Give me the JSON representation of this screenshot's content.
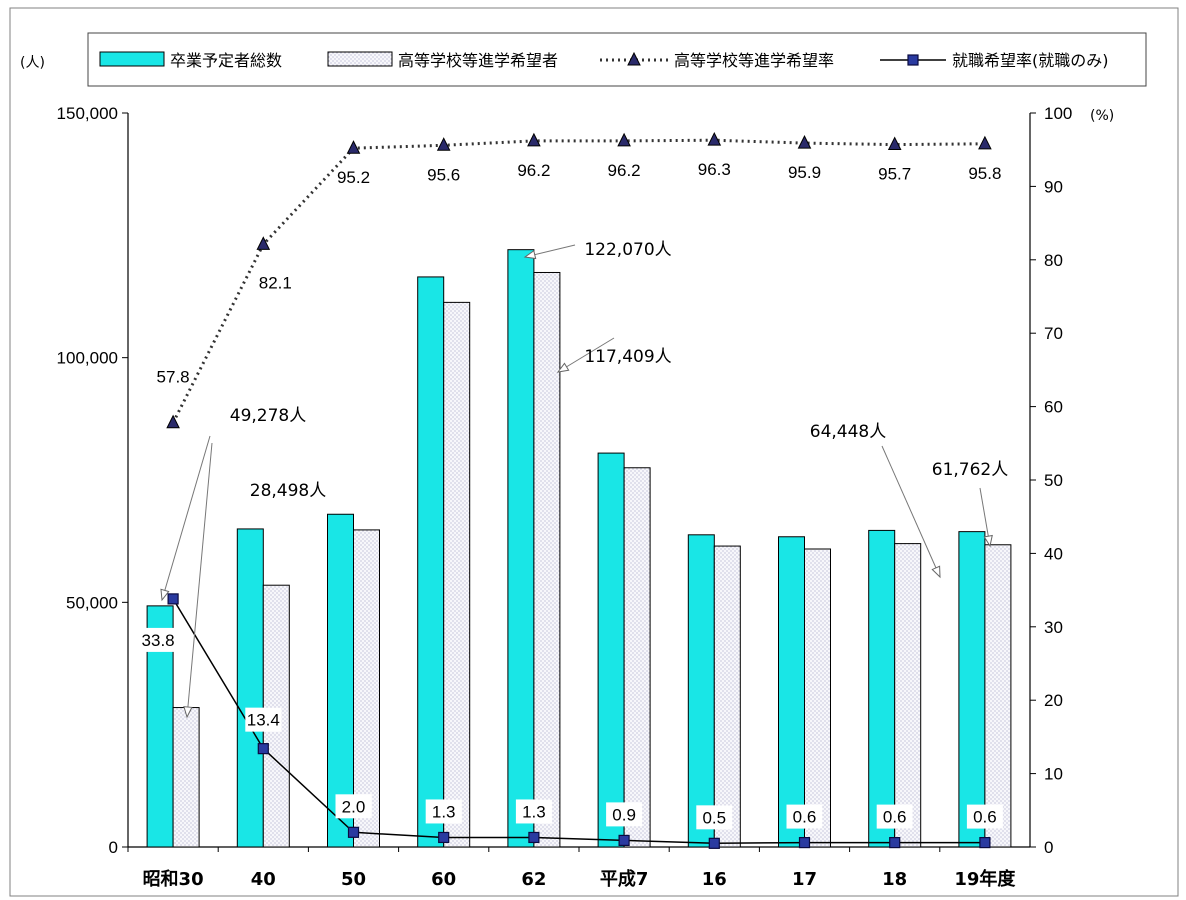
{
  "chart_data": {
    "type": "bar",
    "categories": [
      "昭和30",
      "40",
      "50",
      "60",
      "62",
      "平成7",
      "16",
      "17",
      "18",
      "19年度"
    ],
    "series": [
      {
        "name": "卒業予定者総数",
        "kind": "bar",
        "axis": "left",
        "color": "#19e6e6",
        "values": [
          49278,
          65000,
          68000,
          116500,
          122070,
          80500,
          63800,
          63400,
          64700,
          64448
        ]
      },
      {
        "name": "高等学校等進学希望者",
        "kind": "bar",
        "axis": "left",
        "color": "#eef0f8",
        "values": [
          28498,
          53500,
          64800,
          111300,
          117409,
          77500,
          61500,
          60900,
          62000,
          61762
        ]
      },
      {
        "name": "高等学校等進学希望率",
        "kind": "line",
        "style": "dotted",
        "marker": "triangle",
        "axis": "right",
        "color": "#1a1a60",
        "values": [
          57.8,
          82.1,
          95.2,
          95.6,
          96.2,
          96.2,
          96.3,
          95.9,
          95.7,
          95.8
        ],
        "labels": [
          "57.8",
          "82.1",
          "95.2",
          "95.6",
          "96.2",
          "96.2",
          "96.3",
          "95.9",
          "95.7",
          "95.8"
        ]
      },
      {
        "name": "就職希望率(就職のみ)",
        "kind": "line",
        "style": "solid",
        "marker": "square",
        "axis": "right",
        "color": "#1a2a8c",
        "values": [
          33.8,
          13.4,
          2.0,
          1.3,
          1.3,
          0.9,
          0.5,
          0.6,
          0.6,
          0.6
        ],
        "labels": [
          "33.8",
          "13.4",
          "2.0",
          "1.3",
          "1.3",
          "0.9",
          "0.5",
          "0.6",
          "0.6",
          "0.6"
        ]
      }
    ],
    "y_left": {
      "unit": "(人)",
      "ylim": [
        0,
        150000
      ],
      "ticks": [
        "0",
        "50,000",
        "100,000",
        "150,000"
      ]
    },
    "y_right": {
      "unit": "(%)",
      "ylim": [
        0,
        100
      ],
      "ticks": [
        "0",
        "10",
        "20",
        "30",
        "40",
        "50",
        "60",
        "70",
        "80",
        "90",
        "100"
      ]
    },
    "annotations": [
      {
        "text": "49,278人",
        "category": "昭和30",
        "series": "卒業予定者総数"
      },
      {
        "text": "28,498人",
        "category": "昭和30",
        "series": "高等学校等進学希望者"
      },
      {
        "text": "122,070人",
        "category": "62",
        "series": "卒業予定者総数"
      },
      {
        "text": "117,409人",
        "category": "62",
        "series": "高等学校等進学希望者"
      },
      {
        "text": "64,448人",
        "category": "19年度",
        "series": "卒業予定者総数"
      },
      {
        "text": "61,762人",
        "category": "19年度",
        "series": "高等学校等進学希望者"
      }
    ],
    "legend": "top",
    "grid": false
  }
}
